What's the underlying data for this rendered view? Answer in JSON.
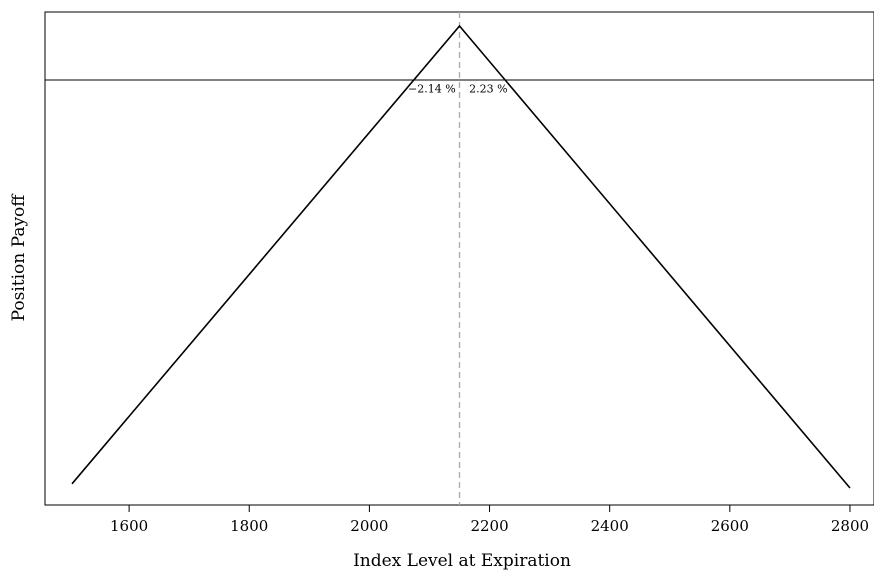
{
  "chart_data": {
    "type": "line",
    "xlabel": "Index Level at Expiration",
    "ylabel": "Position Payoff",
    "xlim": [
      1460,
      2840
    ],
    "ylim": [
      -1.0,
      0.16
    ],
    "x_ticks": [
      1600,
      1800,
      2000,
      2200,
      2400,
      2600,
      2800
    ],
    "y_ticks_shown": false,
    "grid": false,
    "series": [
      {
        "x": [
          1505,
          2150,
          2800
        ],
        "y": [
          -0.95,
          0.127,
          -0.96
        ]
      }
    ],
    "reference_lines": {
      "horizontal_y": 0,
      "vertical_x": 2150
    },
    "annotations": [
      {
        "text": "−2.14 %",
        "x": 2104,
        "y": -0.02
      },
      {
        "text": "2.23 %",
        "x": 2198,
        "y": -0.02
      }
    ],
    "colors": {
      "line": "#000000",
      "reference_vertical": "#aaaaaa"
    }
  }
}
